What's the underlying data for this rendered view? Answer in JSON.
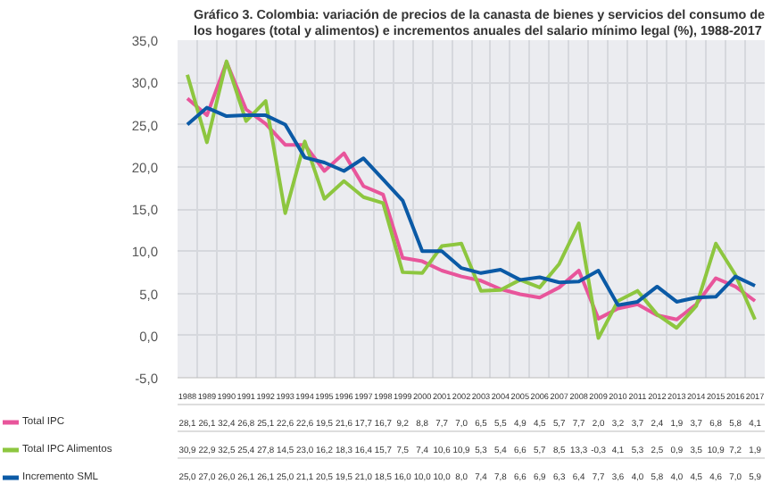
{
  "chart_data": {
    "type": "line",
    "title": "Gráfico 3. Colombia: variación de precios de la canasta de bienes y servicios del consumo de los hogares (total y alimentos) e incrementos anuales del salario mínimo legal (%), 1988-2017",
    "categories": [
      "1988",
      "1989",
      "1990",
      "1991",
      "1992",
      "1993",
      "1994",
      "1995",
      "1996",
      "1997",
      "1998",
      "1999",
      "2000",
      "2001",
      "2002",
      "2003",
      "2004",
      "2005",
      "2006",
      "2007",
      "2008",
      "2009",
      "2010",
      "2011",
      "2012",
      "2013",
      "2014",
      "2015",
      "2016",
      "2017"
    ],
    "ylim": [
      -5,
      35
    ],
    "yticks": [
      {
        "value": -5,
        "label": "-5,0"
      },
      {
        "value": 0,
        "label": "0,0"
      },
      {
        "value": 5,
        "label": "5,0"
      },
      {
        "value": 10,
        "label": "10,0"
      },
      {
        "value": 15,
        "label": "15,0"
      },
      {
        "value": 20,
        "label": "20,0"
      },
      {
        "value": 25,
        "label": "25,0"
      },
      {
        "value": 30,
        "label": "30,0"
      },
      {
        "value": 35,
        "label": "35,0"
      }
    ],
    "grid": true,
    "legend": "bottom left",
    "line_style": "solid",
    "marker": "none",
    "series": [
      {
        "name": "Total IPC",
        "color": "#e8559b",
        "values": [
          28.1,
          26.1,
          32.4,
          26.8,
          25.1,
          22.6,
          22.6,
          19.5,
          21.6,
          17.7,
          16.7,
          9.2,
          8.8,
          7.7,
          7.0,
          6.5,
          5.5,
          4.9,
          4.5,
          5.7,
          7.7,
          2.0,
          3.2,
          3.7,
          2.4,
          1.9,
          3.7,
          6.8,
          5.8,
          4.1
        ],
        "value_labels": [
          "28,1",
          "26,1",
          "32,4",
          "26,8",
          "25,1",
          "22,6",
          "22,6",
          "19,5",
          "21,6",
          "17,7",
          "16,7",
          "9,2",
          "8,8",
          "7,7",
          "7,0",
          "6,5",
          "5,5",
          "4,9",
          "4,5",
          "5,7",
          "7,7",
          "2,0",
          "3,2",
          "3,7",
          "2,4",
          "1,9",
          "3,7",
          "6,8",
          "5,8",
          "4,1"
        ]
      },
      {
        "name": "Total IPC Alimentos",
        "color": "#8dc63f",
        "values": [
          30.9,
          22.9,
          32.5,
          25.4,
          27.8,
          14.5,
          23.0,
          16.2,
          18.3,
          16.4,
          15.7,
          7.5,
          7.4,
          10.6,
          10.9,
          5.3,
          5.4,
          6.6,
          5.7,
          8.5,
          13.3,
          -0.3,
          4.1,
          5.3,
          2.5,
          0.9,
          3.5,
          10.9,
          7.2,
          1.9
        ],
        "value_labels": [
          "30,9",
          "22,9",
          "32,5",
          "25,4",
          "27,8",
          "14,5",
          "23,0",
          "16,2",
          "18,3",
          "16,4",
          "15,7",
          "7,5",
          "7,4",
          "10,6",
          "10,9",
          "5,3",
          "5,4",
          "6,6",
          "5,7",
          "8,5",
          "13,3",
          "-0,3",
          "4,1",
          "5,3",
          "2,5",
          "0,9",
          "3,5",
          "10,9",
          "7,2",
          "1,9"
        ]
      },
      {
        "name": "Incremento SML",
        "color": "#0b5aa6",
        "values": [
          25.0,
          27.0,
          26.0,
          26.1,
          26.1,
          25.0,
          21.1,
          20.5,
          19.5,
          21.0,
          18.5,
          16.0,
          10.0,
          10.0,
          8.0,
          7.4,
          7.8,
          6.6,
          6.9,
          6.3,
          6.4,
          7.7,
          3.6,
          4.0,
          5.8,
          4.0,
          4.5,
          4.6,
          7.0,
          5.9
        ],
        "value_labels": [
          "25,0",
          "27,0",
          "26,0",
          "26,1",
          "26,1",
          "25,0",
          "21,1",
          "20,5",
          "19,5",
          "21,0",
          "18,5",
          "16,0",
          "10,0",
          "10,0",
          "8,0",
          "7,4",
          "7,8",
          "6,6",
          "6,9",
          "6,3",
          "6,4",
          "7,7",
          "3,6",
          "4,0",
          "5,8",
          "4,0",
          "4,5",
          "4,6",
          "7,0",
          "5,9"
        ]
      }
    ]
  }
}
